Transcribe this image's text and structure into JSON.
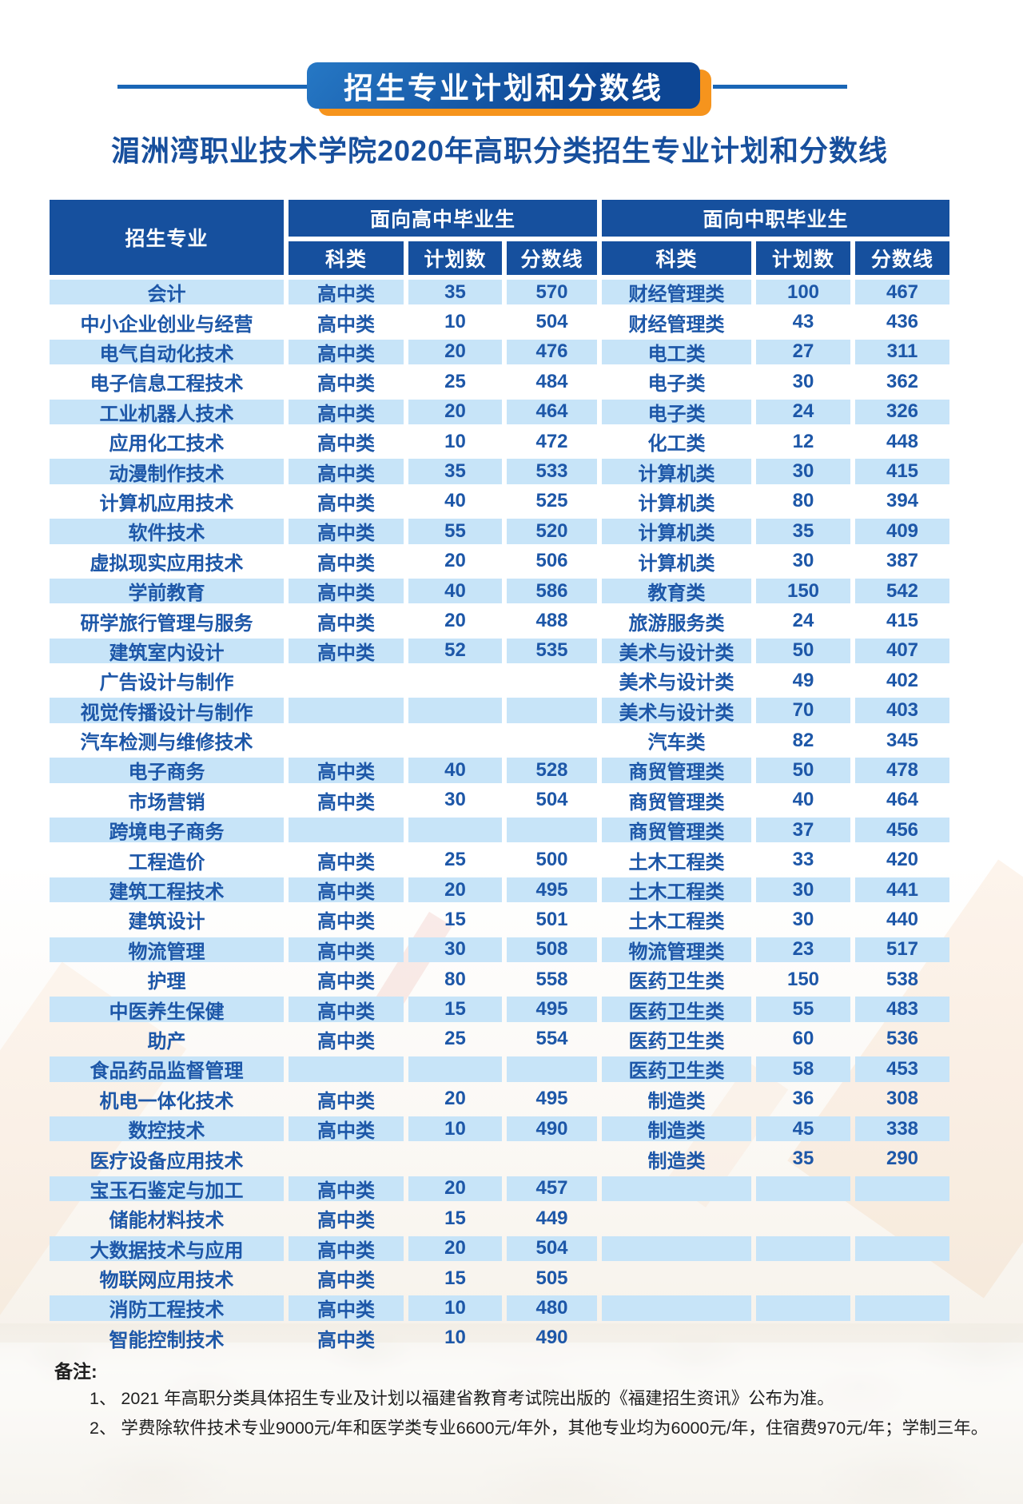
{
  "banner": {
    "label": "招生专业计划和分数线"
  },
  "page_title": "湄洲湾职业技术学院2020年高职分类招生专业计划和分数线",
  "table": {
    "col_major": "招生专业",
    "group_left": "面向高中毕业生",
    "group_right": "面向中职毕业生",
    "sub": [
      "科类",
      "计划数",
      "分数线"
    ],
    "rows": [
      {
        "major": "会计",
        "hs_cat": "高中类",
        "hs_plan": "35",
        "hs_score": "570",
        "vs_cat": "财经管理类",
        "vs_plan": "100",
        "vs_score": "467"
      },
      {
        "major": "中小企业创业与经营",
        "hs_cat": "高中类",
        "hs_plan": "10",
        "hs_score": "504",
        "vs_cat": "财经管理类",
        "vs_plan": "43",
        "vs_score": "436"
      },
      {
        "major": "电气自动化技术",
        "hs_cat": "高中类",
        "hs_plan": "20",
        "hs_score": "476",
        "vs_cat": "电工类",
        "vs_plan": "27",
        "vs_score": "311"
      },
      {
        "major": "电子信息工程技术",
        "hs_cat": "高中类",
        "hs_plan": "25",
        "hs_score": "484",
        "vs_cat": "电子类",
        "vs_plan": "30",
        "vs_score": "362"
      },
      {
        "major": "工业机器人技术",
        "hs_cat": "高中类",
        "hs_plan": "20",
        "hs_score": "464",
        "vs_cat": "电子类",
        "vs_plan": "24",
        "vs_score": "326"
      },
      {
        "major": "应用化工技术",
        "hs_cat": "高中类",
        "hs_plan": "10",
        "hs_score": "472",
        "vs_cat": "化工类",
        "vs_plan": "12",
        "vs_score": "448"
      },
      {
        "major": "动漫制作技术",
        "hs_cat": "高中类",
        "hs_plan": "35",
        "hs_score": "533",
        "vs_cat": "计算机类",
        "vs_plan": "30",
        "vs_score": "415"
      },
      {
        "major": "计算机应用技术",
        "hs_cat": "高中类",
        "hs_plan": "40",
        "hs_score": "525",
        "vs_cat": "计算机类",
        "vs_plan": "80",
        "vs_score": "394"
      },
      {
        "major": "软件技术",
        "hs_cat": "高中类",
        "hs_plan": "55",
        "hs_score": "520",
        "vs_cat": "计算机类",
        "vs_plan": "35",
        "vs_score": "409"
      },
      {
        "major": "虚拟现实应用技术",
        "hs_cat": "高中类",
        "hs_plan": "20",
        "hs_score": "506",
        "vs_cat": "计算机类",
        "vs_plan": "30",
        "vs_score": "387"
      },
      {
        "major": "学前教育",
        "hs_cat": "高中类",
        "hs_plan": "40",
        "hs_score": "586",
        "vs_cat": "教育类",
        "vs_plan": "150",
        "vs_score": "542"
      },
      {
        "major": "研学旅行管理与服务",
        "hs_cat": "高中类",
        "hs_plan": "20",
        "hs_score": "488",
        "vs_cat": "旅游服务类",
        "vs_plan": "24",
        "vs_score": "415"
      },
      {
        "major": "建筑室内设计",
        "hs_cat": "高中类",
        "hs_plan": "52",
        "hs_score": "535",
        "vs_cat": "美术与设计类",
        "vs_plan": "50",
        "vs_score": "407"
      },
      {
        "major": "广告设计与制作",
        "hs_cat": "",
        "hs_plan": "",
        "hs_score": "",
        "vs_cat": "美术与设计类",
        "vs_plan": "49",
        "vs_score": "402"
      },
      {
        "major": "视觉传播设计与制作",
        "hs_cat": "",
        "hs_plan": "",
        "hs_score": "",
        "vs_cat": "美术与设计类",
        "vs_plan": "70",
        "vs_score": "403"
      },
      {
        "major": "汽车检测与维修技术",
        "hs_cat": "",
        "hs_plan": "",
        "hs_score": "",
        "vs_cat": "汽车类",
        "vs_plan": "82",
        "vs_score": "345"
      },
      {
        "major": "电子商务",
        "hs_cat": "高中类",
        "hs_plan": "40",
        "hs_score": "528",
        "vs_cat": "商贸管理类",
        "vs_plan": "50",
        "vs_score": "478"
      },
      {
        "major": "市场营销",
        "hs_cat": "高中类",
        "hs_plan": "30",
        "hs_score": "504",
        "vs_cat": "商贸管理类",
        "vs_plan": "40",
        "vs_score": "464"
      },
      {
        "major": "跨境电子商务",
        "hs_cat": "",
        "hs_plan": "",
        "hs_score": "",
        "vs_cat": "商贸管理类",
        "vs_plan": "37",
        "vs_score": "456"
      },
      {
        "major": "工程造价",
        "hs_cat": "高中类",
        "hs_plan": "25",
        "hs_score": "500",
        "vs_cat": "土木工程类",
        "vs_plan": "33",
        "vs_score": "420"
      },
      {
        "major": "建筑工程技术",
        "hs_cat": "高中类",
        "hs_plan": "20",
        "hs_score": "495",
        "vs_cat": "土木工程类",
        "vs_plan": "30",
        "vs_score": "441"
      },
      {
        "major": "建筑设计",
        "hs_cat": "高中类",
        "hs_plan": "15",
        "hs_score": "501",
        "vs_cat": "土木工程类",
        "vs_plan": "30",
        "vs_score": "440"
      },
      {
        "major": "物流管理",
        "hs_cat": "高中类",
        "hs_plan": "30",
        "hs_score": "508",
        "vs_cat": "物流管理类",
        "vs_plan": "23",
        "vs_score": "517"
      },
      {
        "major": "护理",
        "hs_cat": "高中类",
        "hs_plan": "80",
        "hs_score": "558",
        "vs_cat": "医药卫生类",
        "vs_plan": "150",
        "vs_score": "538"
      },
      {
        "major": "中医养生保健",
        "hs_cat": "高中类",
        "hs_plan": "15",
        "hs_score": "495",
        "vs_cat": "医药卫生类",
        "vs_plan": "55",
        "vs_score": "483"
      },
      {
        "major": "助产",
        "hs_cat": "高中类",
        "hs_plan": "25",
        "hs_score": "554",
        "vs_cat": "医药卫生类",
        "vs_plan": "60",
        "vs_score": "536"
      },
      {
        "major": "食品药品监督管理",
        "hs_cat": "",
        "hs_plan": "",
        "hs_score": "",
        "vs_cat": "医药卫生类",
        "vs_plan": "58",
        "vs_score": "453"
      },
      {
        "major": "机电一体化技术",
        "hs_cat": "高中类",
        "hs_plan": "20",
        "hs_score": "495",
        "vs_cat": "制造类",
        "vs_plan": "36",
        "vs_score": "308"
      },
      {
        "major": "数控技术",
        "hs_cat": "高中类",
        "hs_plan": "10",
        "hs_score": "490",
        "vs_cat": "制造类",
        "vs_plan": "45",
        "vs_score": "338"
      },
      {
        "major": "医疗设备应用技术",
        "hs_cat": "",
        "hs_plan": "",
        "hs_score": "",
        "vs_cat": "制造类",
        "vs_plan": "35",
        "vs_score": "290"
      },
      {
        "major": "宝玉石鉴定与加工",
        "hs_cat": "高中类",
        "hs_plan": "20",
        "hs_score": "457",
        "vs_cat": "",
        "vs_plan": "",
        "vs_score": ""
      },
      {
        "major": "储能材料技术",
        "hs_cat": "高中类",
        "hs_plan": "15",
        "hs_score": "449",
        "vs_cat": "",
        "vs_plan": "",
        "vs_score": ""
      },
      {
        "major": "大数据技术与应用",
        "hs_cat": "高中类",
        "hs_plan": "20",
        "hs_score": "504",
        "vs_cat": "",
        "vs_plan": "",
        "vs_score": ""
      },
      {
        "major": "物联网应用技术",
        "hs_cat": "高中类",
        "hs_plan": "15",
        "hs_score": "505",
        "vs_cat": "",
        "vs_plan": "",
        "vs_score": ""
      },
      {
        "major": "消防工程技术",
        "hs_cat": "高中类",
        "hs_plan": "10",
        "hs_score": "480",
        "vs_cat": "",
        "vs_plan": "",
        "vs_score": ""
      },
      {
        "major": "智能控制技术",
        "hs_cat": "高中类",
        "hs_plan": "10",
        "hs_score": "490",
        "vs_cat": "",
        "vs_plan": "",
        "vs_score": ""
      }
    ]
  },
  "notes": {
    "label": "备注:",
    "items": [
      "1、 2021 年高职分类具体招生专业及计划以福建省教育考试院出版的《福建招生资讯》公布为准。",
      "2、 学费除软件技术专业9000元/年和医学类专业6600元/年外，其他专业均为6000元/年，住宿费970元/年；学制三年。"
    ]
  },
  "colors": {
    "header_blue": "#16509e",
    "stripe_blue": "#c7e4f8",
    "text_blue": "#1d57a8",
    "banner_blue_dark": "#0d4694",
    "banner_blue_light": "#2678c5",
    "accent_orange": "#f6941d",
    "rule_blue": "#1a66b6",
    "title_blue": "#174f9d",
    "note_text": "#1f1f1f"
  }
}
